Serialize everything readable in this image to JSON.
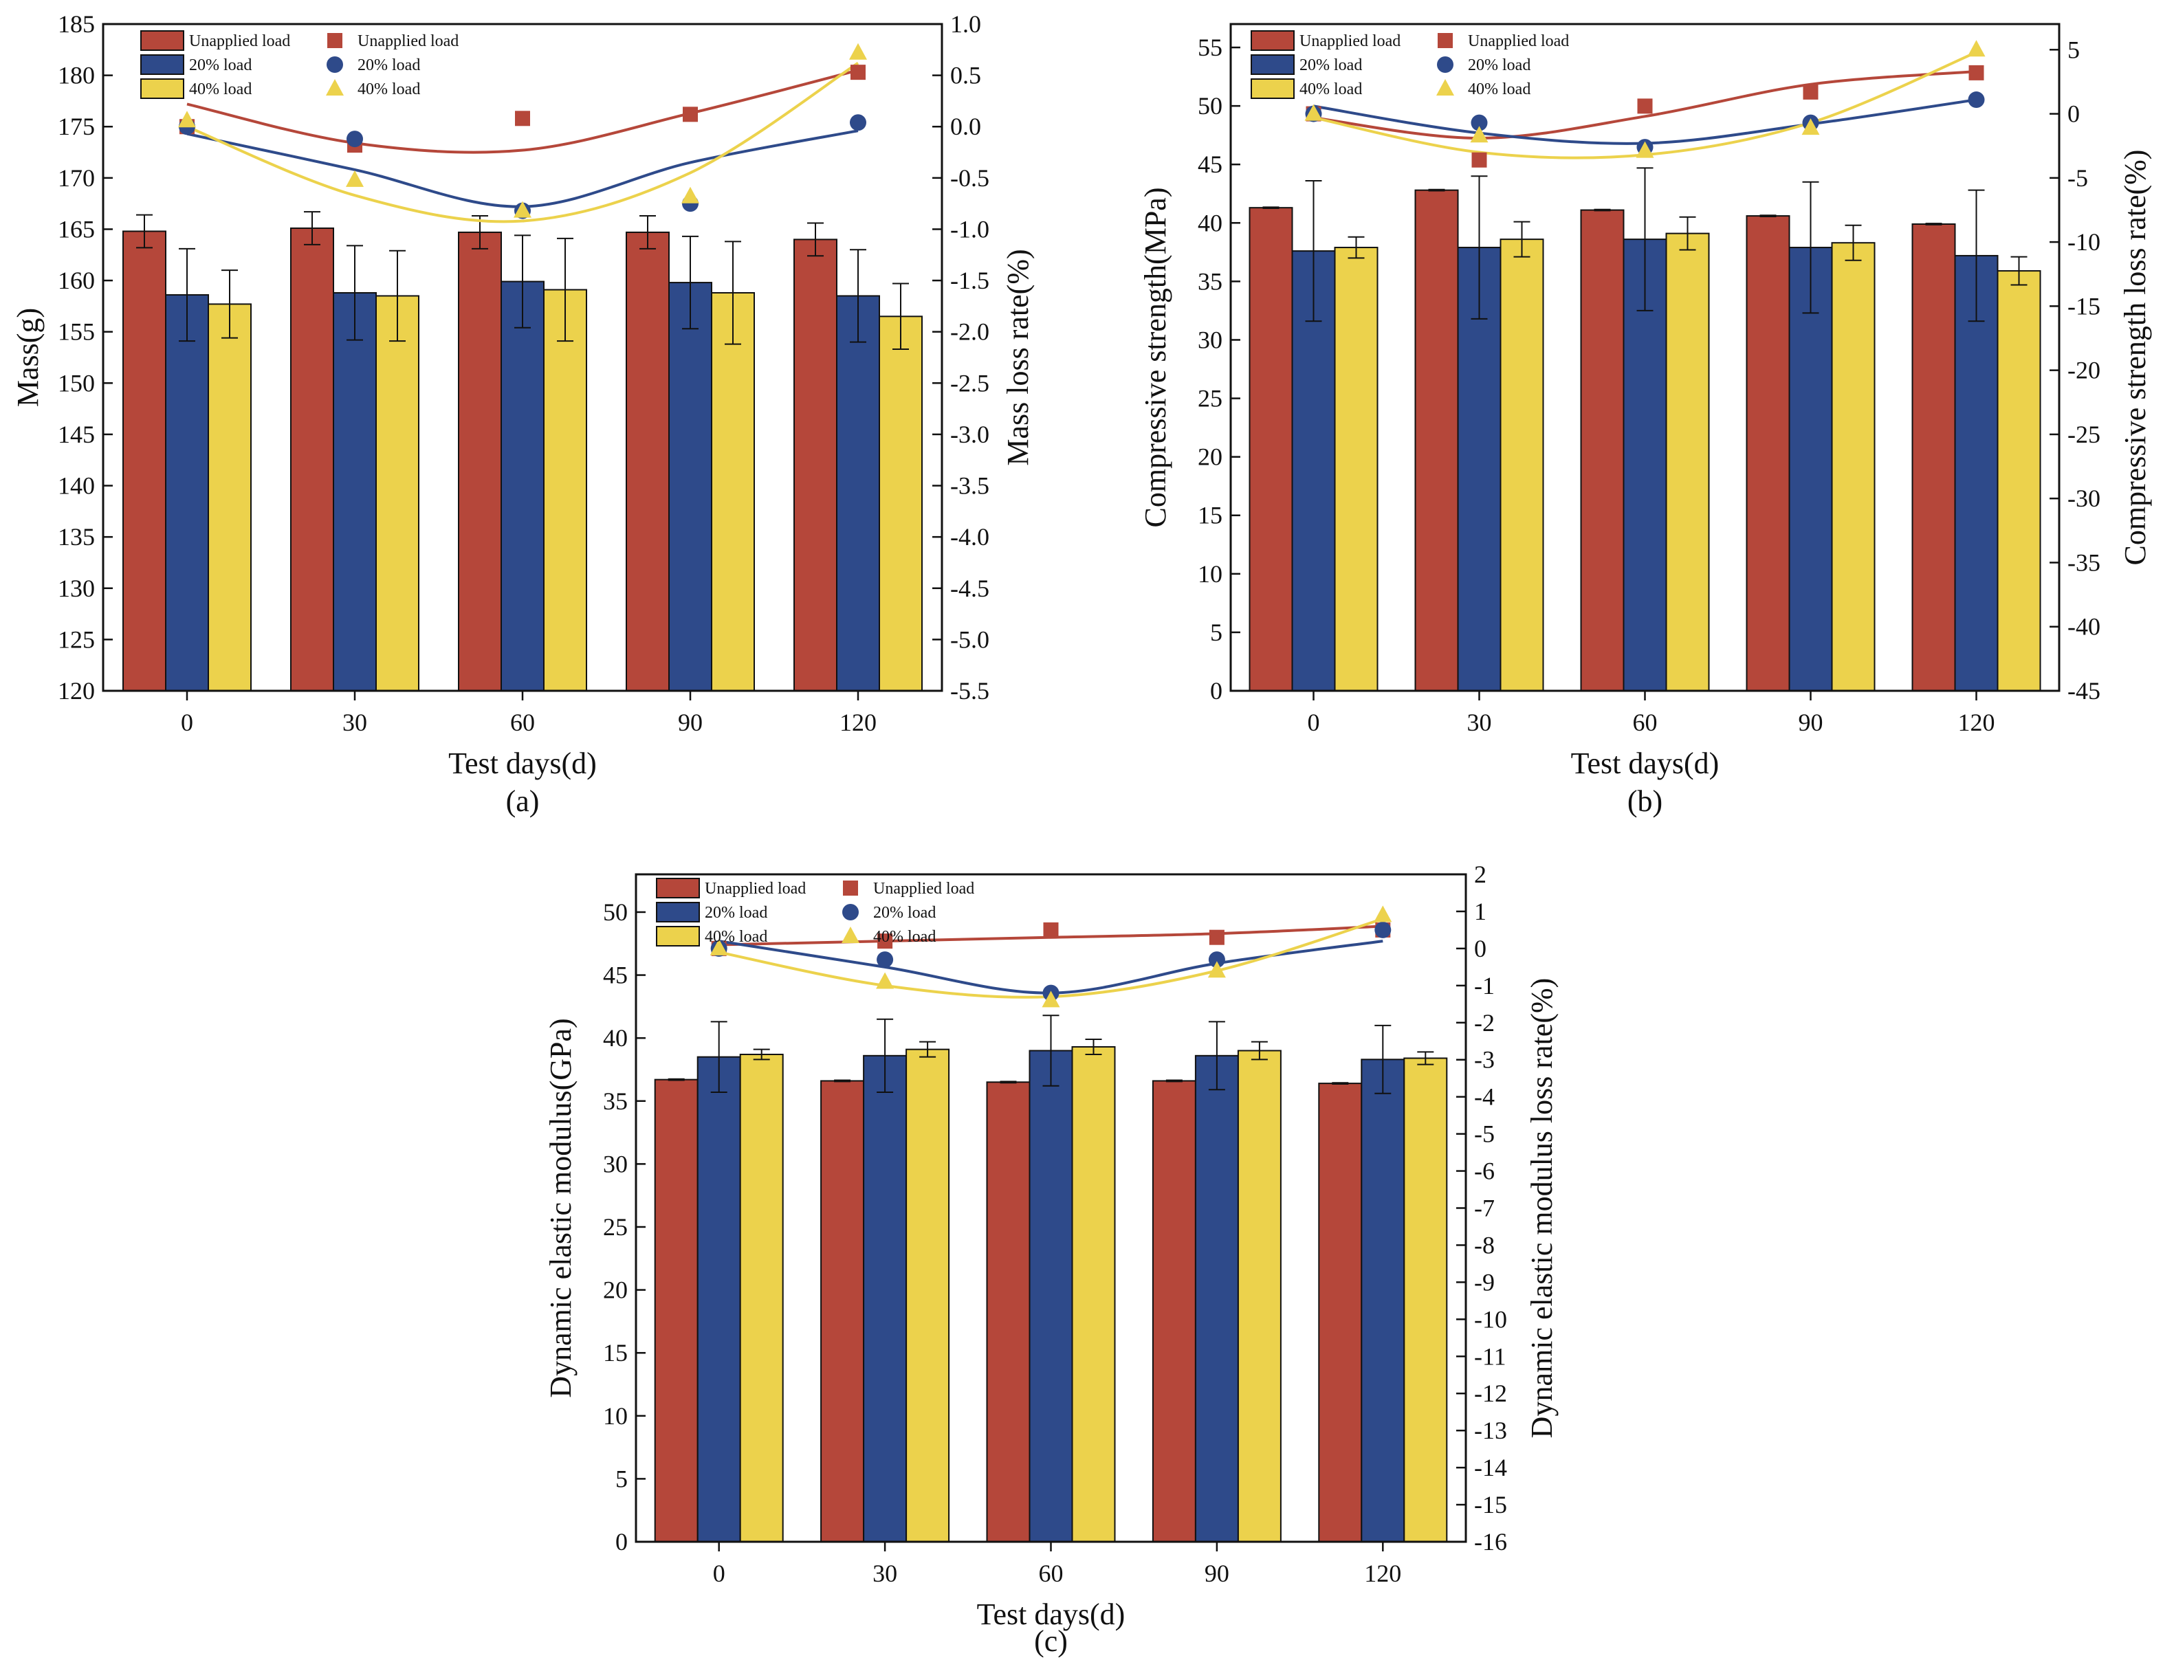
{
  "colors": {
    "unapplied": "#b5473a",
    "load20": "#2e4a8a",
    "load40": "#ecd24c",
    "axis": "#111111"
  },
  "legend": {
    "bars": [
      "Unapplied load",
      "20% load",
      "40% load"
    ],
    "points": [
      "Unapplied load",
      "20% load",
      "40% load"
    ]
  },
  "chart_data": [
    {
      "type": "bar",
      "caption": "(a)",
      "categories": [
        "0",
        "30",
        "60",
        "90",
        "120"
      ],
      "xlabel": "Test days(d)",
      "ylabel": "Mass(g)",
      "ylabel_right": "Mass loss rate(%)",
      "ylim": [
        120,
        185
      ],
      "yticks": [
        120,
        125,
        130,
        135,
        140,
        145,
        150,
        155,
        160,
        165,
        170,
        175,
        180,
        185
      ],
      "ylim_right": [
        -5.5,
        1.0
      ],
      "yticks_right": [
        -5.5,
        -5.0,
        -4.5,
        -4.0,
        -3.5,
        -3.0,
        -2.5,
        -2.0,
        -1.5,
        -1.0,
        -0.5,
        0.0,
        0.5,
        1.0
      ],
      "yticks_right_labels": [
        "-5.5",
        "-5.0",
        "-4.5",
        "-4.0",
        "-3.5",
        "-3.0",
        "-2.5",
        "-2.0",
        "-1.5",
        "-1.0",
        "-0.5",
        "0.0",
        "0.5",
        "1.0"
      ],
      "series": [
        {
          "name": "Unapplied load",
          "values": [
            164.8,
            165.1,
            164.7,
            164.7,
            164.0
          ],
          "errors": [
            1.6,
            1.6,
            1.6,
            1.6,
            1.6
          ]
        },
        {
          "name": "20% load",
          "values": [
            158.6,
            158.8,
            159.9,
            159.8,
            158.5
          ],
          "errors": [
            4.5,
            4.6,
            4.5,
            4.5,
            4.5
          ]
        },
        {
          "name": "40% load",
          "values": [
            157.7,
            158.5,
            159.1,
            158.8,
            156.5
          ],
          "errors": [
            3.3,
            4.4,
            5.0,
            5.0,
            3.2
          ]
        }
      ],
      "loss_rate_series": [
        {
          "name": "Unapplied load",
          "marker": "square",
          "values": [
            0.0,
            -0.18,
            0.08,
            0.12,
            0.53
          ]
        },
        {
          "name": "20% load",
          "marker": "circle",
          "values": [
            0.0,
            -0.12,
            -0.82,
            -0.75,
            0.04
          ]
        },
        {
          "name": "40% load",
          "marker": "triangle",
          "values": [
            0.06,
            -0.52,
            -0.82,
            -0.68,
            0.72
          ]
        }
      ],
      "fit_curves": [
        {
          "name": "Unapplied load",
          "values": [
            0.22,
            -0.16,
            -0.23,
            0.13,
            0.55
          ]
        },
        {
          "name": "20% load",
          "values": [
            -0.07,
            -0.42,
            -0.78,
            -0.35,
            -0.04
          ]
        },
        {
          "name": "40% load",
          "values": [
            0.0,
            -0.67,
            -0.92,
            -0.45,
            0.62
          ]
        }
      ]
    },
    {
      "type": "bar",
      "caption": "(b)",
      "categories": [
        "0",
        "30",
        "60",
        "90",
        "120"
      ],
      "xlabel": "Test days(d)",
      "ylabel": "Compressive strength(MPa)",
      "ylabel_right": "Compressive strength loss rate(%)",
      "ylim": [
        0,
        57
      ],
      "yticks": [
        0,
        5,
        10,
        15,
        20,
        25,
        30,
        35,
        40,
        45,
        50,
        55
      ],
      "ylim_right": [
        -45,
        7
      ],
      "yticks_right": [
        -45,
        -40,
        -35,
        -30,
        -25,
        -20,
        -15,
        -10,
        -5,
        0,
        5
      ],
      "yticks_right_labels": [
        "-45",
        "-40",
        "-35",
        "-30",
        "-25",
        "-20",
        "-15",
        "-10",
        "-5",
        "0",
        "5"
      ],
      "series": [
        {
          "name": "Unapplied load",
          "values": [
            41.3,
            42.8,
            41.1,
            40.6,
            39.9
          ],
          "errors": [
            0.05,
            0.05,
            0.05,
            0.05,
            0.05
          ]
        },
        {
          "name": "20% load",
          "values": [
            37.6,
            37.9,
            38.6,
            37.9,
            37.2
          ],
          "errors": [
            6.0,
            6.1,
            6.1,
            5.6,
            5.6
          ]
        },
        {
          "name": "40% load",
          "values": [
            37.9,
            38.6,
            39.1,
            38.3,
            35.9
          ],
          "errors": [
            0.9,
            1.5,
            1.4,
            1.5,
            1.2
          ]
        }
      ],
      "loss_rate_series": [
        {
          "name": "Unapplied load",
          "marker": "square",
          "values": [
            0.0,
            -3.6,
            0.6,
            1.7,
            3.2
          ]
        },
        {
          "name": "20% load",
          "marker": "circle",
          "values": [
            0.0,
            -0.7,
            -2.6,
            -0.7,
            1.1
          ]
        },
        {
          "name": "40% load",
          "marker": "triangle",
          "values": [
            0.0,
            -1.7,
            -2.9,
            -1.1,
            5.0
          ]
        }
      ],
      "fit_curves": [
        {
          "name": "Unapplied load",
          "values": [
            -0.3,
            -1.9,
            -0.2,
            2.3,
            3.3
          ]
        },
        {
          "name": "20% load",
          "values": [
            0.6,
            -1.5,
            -2.3,
            -0.8,
            1.1
          ]
        },
        {
          "name": "40% load",
          "values": [
            -0.3,
            -3.0,
            -3.2,
            -0.7,
            4.8
          ]
        }
      ]
    },
    {
      "type": "bar",
      "caption": "(c)",
      "categories": [
        "0",
        "30",
        "60",
        "90",
        "120"
      ],
      "xlabel": "Test days(d)",
      "ylabel": "Dynamic elastic modulus(GPa)",
      "ylabel_right": "Dynamic elastic modulus loss rate(%)",
      "ylim": [
        0,
        53
      ],
      "yticks": [
        0,
        5,
        10,
        15,
        20,
        25,
        30,
        35,
        40,
        45,
        50
      ],
      "ylim_right": [
        -16,
        2
      ],
      "yticks_right": [
        -16,
        -15,
        -14,
        -13,
        -12,
        -11,
        -10,
        -9,
        -8,
        -7,
        -6,
        -5,
        -4,
        -3,
        -2,
        -1,
        0,
        1,
        2
      ],
      "yticks_right_labels": [
        "-16",
        "-15",
        "-14",
        "-13",
        "-12",
        "-11",
        "-10",
        "-9",
        "-8",
        "-7",
        "-6",
        "-5",
        "-4",
        "-3",
        "-2",
        "-1",
        "0",
        "1",
        "2"
      ],
      "series": [
        {
          "name": "Unapplied load",
          "values": [
            36.7,
            36.6,
            36.5,
            36.6,
            36.4
          ],
          "errors": [
            0.05,
            0.05,
            0.05,
            0.05,
            0.05
          ]
        },
        {
          "name": "20% load",
          "values": [
            38.5,
            38.6,
            39.0,
            38.6,
            38.3
          ],
          "errors": [
            2.8,
            2.9,
            2.8,
            2.7,
            2.7
          ]
        },
        {
          "name": "40% load",
          "values": [
            38.7,
            39.1,
            39.3,
            39.0,
            38.4
          ],
          "errors": [
            0.4,
            0.6,
            0.6,
            0.7,
            0.5
          ]
        }
      ],
      "loss_rate_series": [
        {
          "name": "Unapplied load",
          "marker": "square",
          "values": [
            0.0,
            0.2,
            0.5,
            0.3,
            0.5
          ]
        },
        {
          "name": "20% load",
          "marker": "circle",
          "values": [
            0.0,
            -0.3,
            -1.2,
            -0.3,
            0.5
          ]
        },
        {
          "name": "40% load",
          "marker": "triangle",
          "values": [
            0.0,
            -0.9,
            -1.4,
            -0.6,
            0.9
          ]
        }
      ],
      "fit_curves": [
        {
          "name": "Unapplied load",
          "values": [
            0.1,
            0.2,
            0.3,
            0.4,
            0.6
          ]
        },
        {
          "name": "20% load",
          "values": [
            0.2,
            -0.5,
            -1.2,
            -0.4,
            0.2
          ]
        },
        {
          "name": "40% load",
          "values": [
            -0.1,
            -1.0,
            -1.3,
            -0.6,
            0.8
          ]
        }
      ]
    }
  ]
}
